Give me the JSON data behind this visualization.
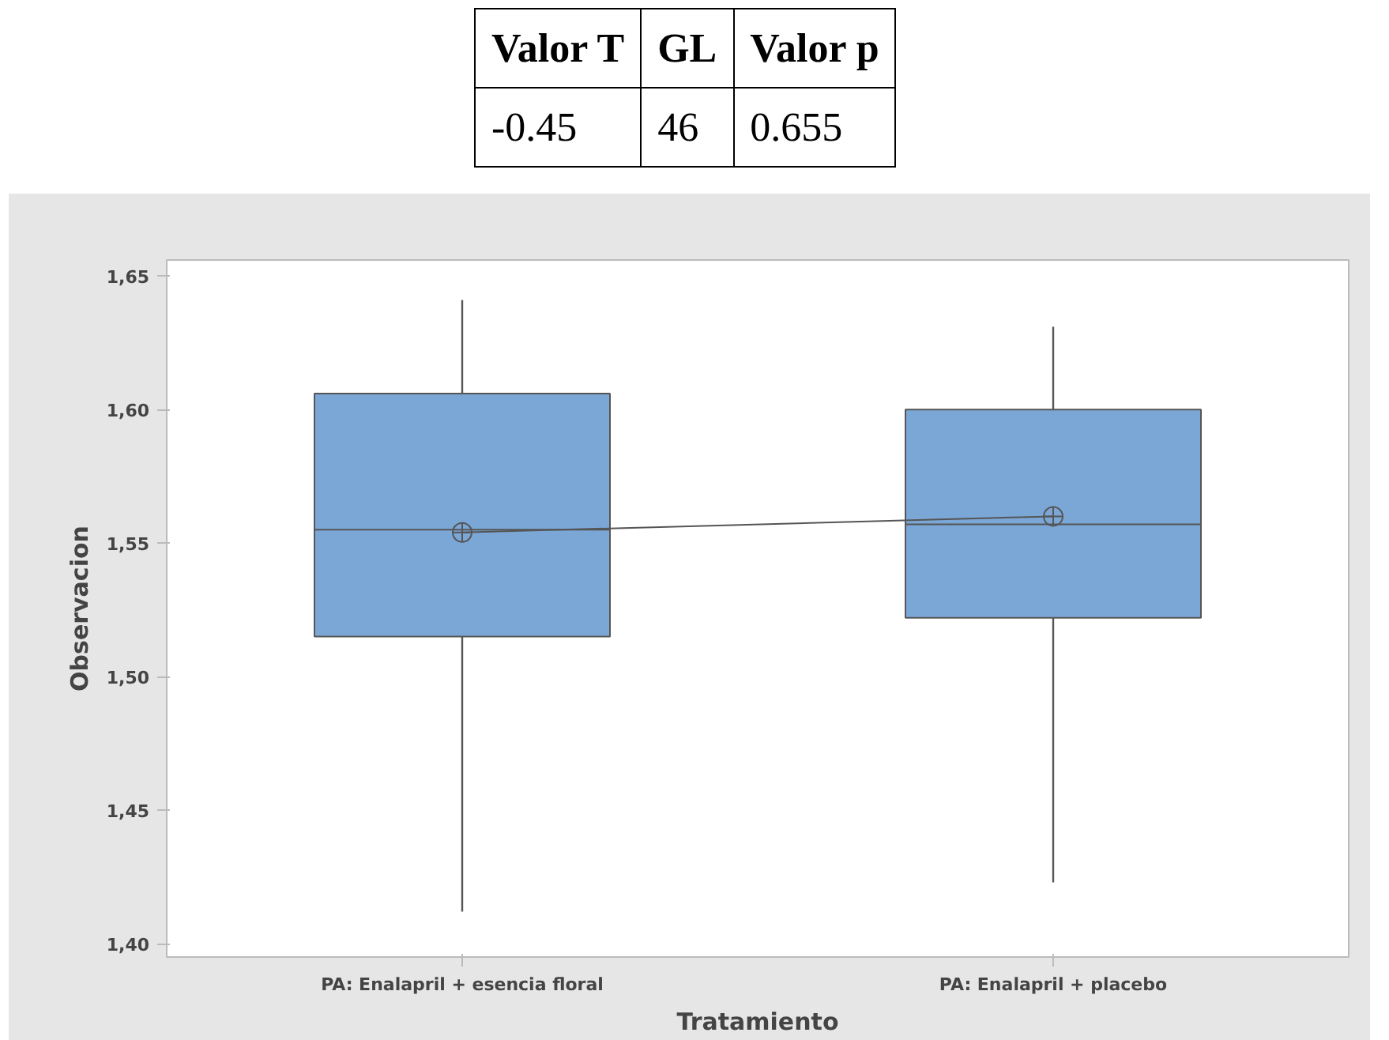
{
  "chart_data": {
    "type": "box",
    "xlabel": "Tratamiento",
    "ylabel": "Observacion",
    "categories": [
      "PA: Enalapril + esencia floral",
      "PA: Enalapril + placebo"
    ],
    "boxes": [
      {
        "low": 1.412,
        "q1": 1.515,
        "median": 1.555,
        "q3": 1.606,
        "high": 1.641,
        "mean": 1.554
      },
      {
        "low": 1.423,
        "q1": 1.522,
        "median": 1.557,
        "q3": 1.6,
        "high": 1.631,
        "mean": 1.56
      }
    ],
    "color": "#7ba7d7",
    "series": [
      {
        "type": "line",
        "color": "#555555",
        "values": [
          1.554,
          1.56
        ]
      }
    ],
    "ylim": [
      1.395,
      1.656
    ],
    "yticks": [
      {
        "value": 1.4,
        "label": "1,40"
      },
      {
        "value": 1.45,
        "label": "1,45"
      },
      {
        "value": 1.5,
        "label": "1,50"
      },
      {
        "value": 1.55,
        "label": "1,55"
      },
      {
        "value": 1.6,
        "label": "1,60"
      },
      {
        "value": 1.65,
        "label": "1,65"
      }
    ],
    "grid": false,
    "annotations": [
      "Valor T",
      "GL",
      "Valor p",
      "-0.45",
      "46",
      "0.655"
    ]
  }
}
